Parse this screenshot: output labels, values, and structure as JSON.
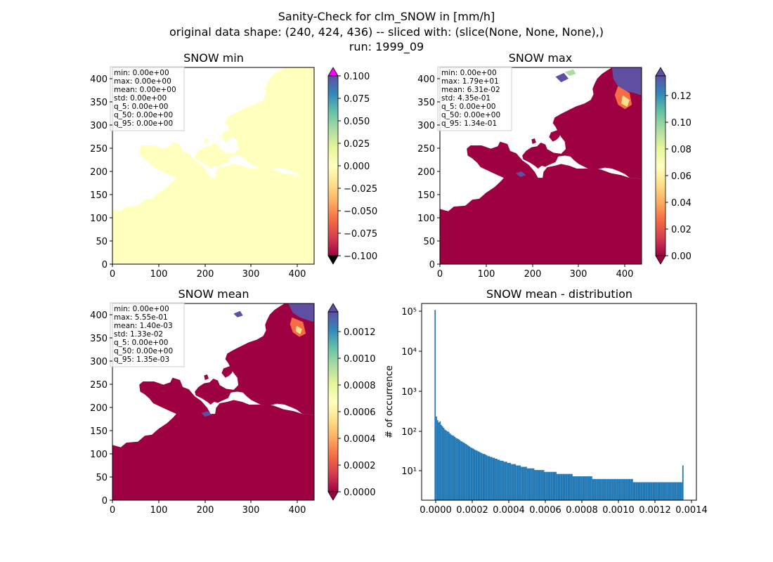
{
  "figure": {
    "title_lines": [
      "Sanity-Check for clm_SNOW in [mm/h]",
      "original data shape: (240, 424, 436) -- sliced with: (slice(None, None, None),)",
      "run: 1999_09"
    ]
  },
  "panels": [
    {
      "title": "SNOW min",
      "stats": [
        "min: 0.00e+00",
        "max: 0.00e+00",
        "mean: 0.00e+00",
        "std: 0.00e+00",
        "q_5: 0.00e+00",
        "q_50: 0.00e+00",
        "q_95: 0.00e+00"
      ],
      "xticks": [
        "0",
        "100",
        "200",
        "300",
        "400"
      ],
      "yticks": [
        "0",
        "50",
        "100",
        "150",
        "200",
        "250",
        "300",
        "350",
        "400"
      ],
      "cbar_ticks": [
        "−0.100",
        "−0.075",
        "−0.050",
        "−0.025",
        "0.000",
        "0.025",
        "0.050",
        "0.075",
        "0.100"
      ],
      "land_color": "#ffffbe",
      "colorbar_extend": "both"
    },
    {
      "title": "SNOW max",
      "stats": [
        "min: 0.00e+00",
        "max: 1.79e+01",
        "mean: 6.31e-02",
        "std: 4.35e-01",
        "q_5: 0.00e+00",
        "q_50: 0.00e+00",
        "q_95: 1.34e-01"
      ],
      "xticks": [
        "0",
        "100",
        "200",
        "300",
        "400"
      ],
      "yticks": [
        "0",
        "50",
        "100",
        "150",
        "200",
        "250",
        "300",
        "350",
        "400"
      ],
      "cbar_ticks": [
        "0.00",
        "0.02",
        "0.04",
        "0.06",
        "0.08",
        "0.10",
        "0.12"
      ],
      "land_color": "#9e0142",
      "colorbar_extend": "both"
    },
    {
      "title": "SNOW mean",
      "stats": [
        "min: 0.00e+00",
        "max: 5.55e-01",
        "mean: 1.40e-03",
        "std: 1.33e-02",
        "q_5: 0.00e+00",
        "q_50: 0.00e+00",
        "q_95: 1.35e-03"
      ],
      "xticks": [
        "0",
        "100",
        "200",
        "300",
        "400"
      ],
      "yticks": [
        "0",
        "50",
        "100",
        "150",
        "200",
        "250",
        "300",
        "350",
        "400"
      ],
      "cbar_ticks": [
        "0.0000",
        "0.0002",
        "0.0004",
        "0.0006",
        "0.0008",
        "0.0010",
        "0.0012"
      ],
      "land_color": "#9e0142",
      "colorbar_extend": "both"
    },
    {
      "title": "SNOW mean - distribution",
      "ylabel": "# of occurrence",
      "xticks": [
        "0.0000",
        "0.0002",
        "0.0004",
        "0.0006",
        "0.0008",
        "0.0010",
        "0.0012",
        "0.0014"
      ],
      "yticks": [
        "10¹",
        "10²",
        "10³",
        "10⁴",
        "10⁵"
      ]
    }
  ],
  "colors": {
    "spectral": [
      "#9e0142",
      "#d53e4f",
      "#f46d43",
      "#fdae61",
      "#fee08b",
      "#ffffbf",
      "#e6f598",
      "#abdda4",
      "#66c2a5",
      "#3288bd",
      "#5e4fa2"
    ],
    "hist_bar": "#1f77b4",
    "over_magenta": "#ff00ff",
    "under_black": "#000000"
  },
  "chart_data": [
    {
      "type": "heatmap",
      "title": "SNOW min",
      "xlim": [
        0,
        436
      ],
      "ylim": [
        0,
        424
      ],
      "color_range": [
        -0.1,
        0.1
      ],
      "colormap": "Spectral",
      "cbar_ticks": [
        -0.1,
        -0.075,
        -0.05,
        -0.025,
        0.0,
        0.025,
        0.05,
        0.075,
        0.1
      ]
    },
    {
      "type": "heatmap",
      "title": "SNOW max",
      "xlim": [
        0,
        436
      ],
      "ylim": [
        0,
        424
      ],
      "color_range": [
        0,
        0.134
      ],
      "colormap": "Spectral",
      "cbar_ticks": [
        0,
        0.02,
        0.04,
        0.06,
        0.08,
        0.1,
        0.12
      ]
    },
    {
      "type": "heatmap",
      "title": "SNOW mean",
      "xlim": [
        0,
        436
      ],
      "ylim": [
        0,
        424
      ],
      "color_range": [
        0,
        0.00135
      ],
      "colormap": "Spectral",
      "cbar_ticks": [
        0,
        0.0002,
        0.0004,
        0.0006,
        0.0008,
        0.001,
        0.0012
      ]
    },
    {
      "type": "bar",
      "title": "SNOW mean - distribution",
      "ylabel": "# of occurrence",
      "yscale": "log",
      "xlim": [
        -7e-05,
        0.00142
      ],
      "ylim": [
        1.8,
        130000
      ],
      "bin_range": [
        0,
        0.00135
      ],
      "bin_count": 200,
      "counts": [
        90000,
        210,
        170,
        150,
        160,
        130,
        120,
        110,
        100,
        95,
        90,
        88,
        80,
        75,
        72,
        70,
        66,
        62,
        60,
        58,
        55,
        52,
        50,
        48,
        46,
        44,
        42,
        40,
        38,
        36,
        35,
        34,
        32,
        31,
        30,
        29,
        28,
        27,
        26,
        25,
        25,
        24,
        23,
        22,
        22,
        21,
        21,
        20,
        20,
        19,
        19,
        18,
        18,
        17,
        17,
        17,
        16,
        16,
        16,
        15,
        15,
        15,
        14,
        14,
        14,
        14,
        13,
        13,
        13,
        13,
        12,
        12,
        12,
        12,
        12,
        11,
        11,
        11,
        11,
        11,
        11,
        10,
        10,
        10,
        10,
        10,
        10,
        10,
        10,
        9,
        9,
        9,
        9,
        9,
        9,
        9,
        9,
        9,
        9,
        8,
        8,
        8,
        8,
        8,
        8,
        8,
        8,
        8,
        8,
        8,
        8,
        8,
        7,
        7,
        7,
        7,
        7,
        7,
        7,
        7,
        7,
        7,
        7,
        7,
        7,
        7,
        7,
        7,
        6,
        6,
        6,
        6,
        6,
        6,
        6,
        6,
        6,
        6,
        6,
        6,
        6,
        6,
        6,
        6,
        6,
        6,
        6,
        6,
        6,
        6,
        6,
        6,
        6,
        6,
        6,
        6,
        6,
        6,
        6,
        6,
        6,
        5,
        5,
        5,
        5,
        5,
        5,
        5,
        5,
        5,
        5,
        5,
        5,
        5,
        5,
        5,
        5,
        5,
        5,
        5,
        5,
        5,
        5,
        5,
        5,
        5,
        5,
        5,
        5,
        5,
        5,
        5,
        5,
        5,
        5,
        5,
        5,
        5,
        5,
        5,
        5,
        13
      ]
    }
  ]
}
